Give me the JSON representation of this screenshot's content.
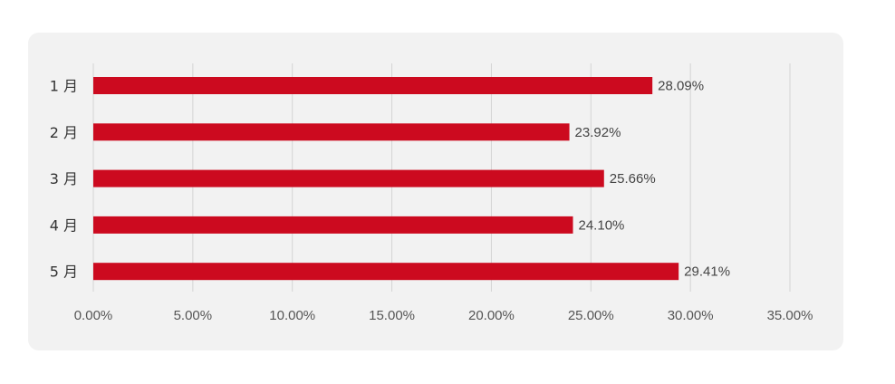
{
  "colors": {
    "bar": "#cc0a1f",
    "grid": "#d4d4d4",
    "panel": "#f2f2f2"
  },
  "chart_data": {
    "type": "bar",
    "orientation": "horizontal",
    "categories": [
      "1 月",
      "2 月",
      "3 月",
      "4 月",
      "5 月"
    ],
    "values": [
      28.09,
      23.92,
      25.66,
      24.1,
      29.41
    ],
    "value_labels": [
      "28.09%",
      "23.92%",
      "25.66%",
      "24.10%",
      "29.41%"
    ],
    "xlim": [
      0,
      35
    ],
    "x_ticks": [
      0,
      5,
      10,
      15,
      20,
      25,
      30,
      35
    ],
    "x_tick_labels": [
      "0.00%",
      "5.00%",
      "10.00%",
      "15.00%",
      "20.00%",
      "25.00%",
      "30.00%",
      "35.00%"
    ],
    "grid": true,
    "legend": "none"
  }
}
